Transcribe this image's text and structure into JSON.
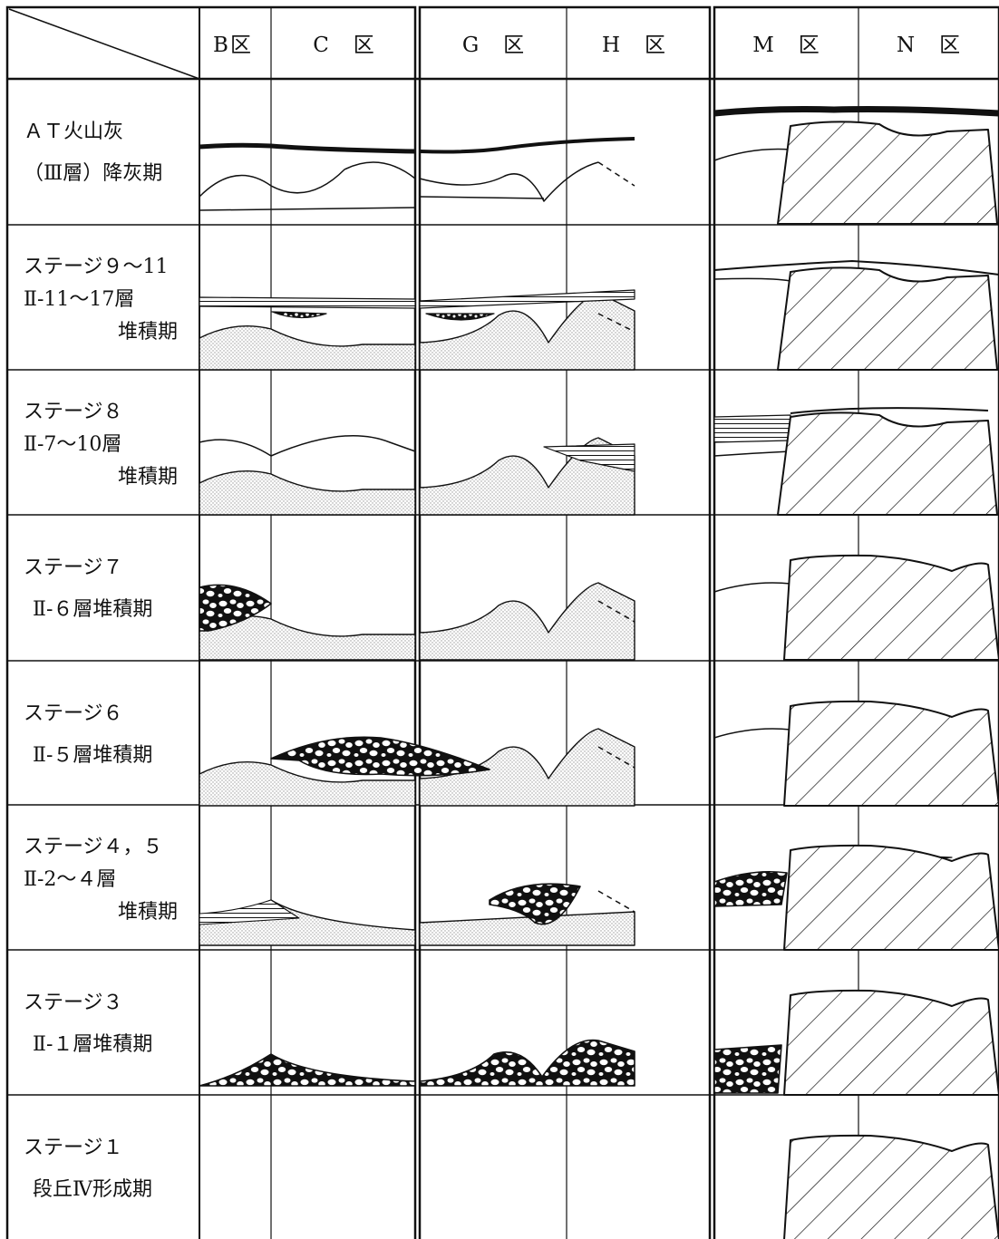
{
  "header": {
    "columns": [
      "B区",
      "C　区",
      "G　区",
      "H　区",
      "M　区",
      "N　区"
    ]
  },
  "stages": [
    {
      "lines": [
        "ＡＴ火山灰",
        "（Ⅲ層）降灰期"
      ]
    },
    {
      "lines": [
        "ステージ９～11",
        "Ⅱ-11～17層",
        "堆積期"
      ]
    },
    {
      "lines": [
        "ステージ８",
        "Ⅱ-7～10層",
        "堆積期"
      ]
    },
    {
      "lines": [
        "ステージ７",
        "Ⅱ-６層堆積期"
      ]
    },
    {
      "lines": [
        "ステージ６",
        "Ⅱ-５層堆積期"
      ]
    },
    {
      "lines": [
        "ステージ４，５",
        "Ⅱ-2～４層",
        "堆積期"
      ]
    },
    {
      "lines": [
        "ステージ３",
        "Ⅱ-１層堆積期"
      ]
    },
    {
      "lines": [
        "ステージ１",
        "段丘Ⅳ形成期"
      ]
    }
  ]
}
